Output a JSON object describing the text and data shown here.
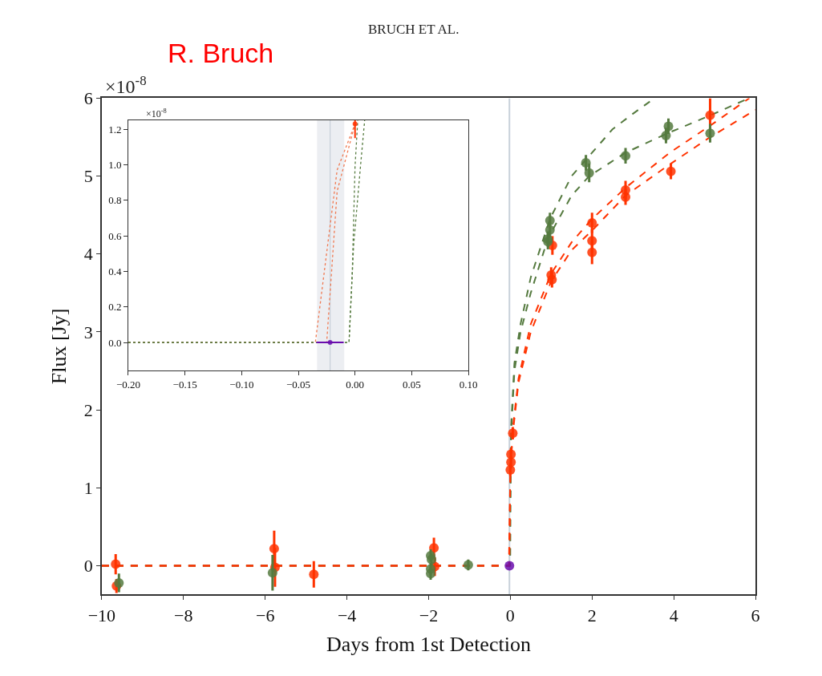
{
  "chart_data": [
    {
      "type": "scatter",
      "title": "BRUCH ET AL.",
      "xlabel": "Days from 1st Detection",
      "ylabel": "Flux [Jy]",
      "annotations": [
        "R. Bruch",
        "×10$^{-8}$"
      ],
      "xlim": [
        -10,
        6
      ],
      "ylim": [
        -0.37,
        6
      ],
      "xticks": [
        {
          "value": -10,
          "label": "−10"
        },
        {
          "value": -8,
          "label": "−8"
        },
        {
          "value": -6,
          "label": "−6"
        },
        {
          "value": -4,
          "label": "−4"
        },
        {
          "value": -2,
          "label": "−2"
        },
        0,
        2,
        4,
        6
      ],
      "yticks": [
        0,
        1,
        2,
        3,
        4,
        5,
        6
      ],
      "marker": "circle",
      "ref_lines": [
        {
          "axis": "x",
          "value": -0.022,
          "color": "#c8d0da"
        }
      ],
      "series": [
        {
          "type": "line",
          "color": "#557a3f",
          "line_style": "dashed",
          "marker": "none",
          "x": [
            -10,
            -0.005,
            0,
            0.02,
            0.1,
            0.25,
            0.5,
            0.97,
            1.5,
            2.0,
            2.5,
            3.0,
            3.53
          ],
          "values": [
            0,
            0,
            0.8,
            1.8,
            2.6,
            3.1,
            3.7,
            4.45,
            5.0,
            5.3,
            5.6,
            5.8,
            6.0
          ]
        },
        {
          "type": "line",
          "color": "#557a3f",
          "line_style": "dashed",
          "marker": "none",
          "x": [
            -10,
            -0.005,
            0,
            0.02,
            0.1,
            0.25,
            0.5,
            0.92,
            1.5,
            1.93,
            2.82,
            3.85,
            4.9,
            5.84
          ],
          "values": [
            0,
            0,
            0.7,
            1.7,
            2.5,
            3.0,
            3.5,
            4.2,
            4.75,
            5.0,
            5.3,
            5.55,
            5.78,
            6.0
          ]
        },
        {
          "type": "line",
          "color": "#ff3300",
          "line_style": "dashed",
          "marker": "none",
          "x": [
            -10,
            -0.035,
            0,
            0.06,
            0.2,
            0.5,
            1.0,
            1.5,
            2.0,
            2.82,
            3.9,
            4.9,
            5.85
          ],
          "values": [
            0,
            0,
            1.2,
            1.76,
            2.4,
            3.1,
            3.75,
            4.15,
            4.45,
            4.85,
            5.3,
            5.65,
            6.0
          ]
        },
        {
          "type": "line",
          "color": "#ff3300",
          "line_style": "dashed",
          "marker": "none",
          "x": [
            -10,
            -0.025,
            0,
            0.06,
            0.2,
            0.5,
            1.0,
            1.5,
            2.0,
            2.82,
            3.9,
            4.89,
            6
          ],
          "values": [
            0,
            0,
            1.2,
            1.7,
            2.35,
            3.0,
            3.65,
            4.05,
            4.3,
            4.75,
            5.15,
            5.5,
            5.85
          ]
        },
        {
          "color": "#ff3300",
          "x": [
            -9.66,
            -9.64,
            -5.78,
            -5.76,
            -4.81,
            -1.87,
            -1.85,
            0.0,
            0.016,
            0.016,
            0.06,
            1.03,
            1.0,
            1.02,
            2.0,
            2.0,
            2.0,
            2.82,
            2.82,
            3.93,
            4.89
          ],
          "values": [
            0.02,
            -0.26,
            0.22,
            -0.02,
            -0.11,
            0.23,
            -0.01,
            1.23,
            1.33,
            1.43,
            1.7,
            4.11,
            3.73,
            3.67,
            4.4,
            4.17,
            4.02,
            4.82,
            4.73,
            5.06,
            5.78
          ],
          "errors": [
            0.13,
            0.09,
            0.23,
            0.25,
            0.17,
            0.13,
            0.12,
            0.08,
            0.08,
            0.08,
            0.08,
            0.12,
            0.1,
            0.1,
            0.13,
            0.15,
            0.15,
            0.12,
            0.1,
            0.1,
            0.22
          ]
        },
        {
          "color": "#557a3f",
          "x": [
            -9.58,
            -5.82,
            -1.95,
            -1.93,
            -1.95,
            -1.95,
            -1.03,
            0.97,
            0.97,
            0.92,
            0.92,
            1.85,
            1.93,
            2.82,
            3.81,
            3.87,
            4.89
          ],
          "values": [
            -0.22,
            -0.09,
            0.13,
            0.08,
            -0.04,
            -0.1,
            0.01,
            4.43,
            4.31,
            4.19,
            4.16,
            5.17,
            5.04,
            5.26,
            5.52,
            5.64,
            5.55
          ],
          "errors": [
            0.12,
            0.23,
            0.08,
            0.08,
            0.08,
            0.08,
            0.07,
            0.1,
            0.1,
            0.1,
            0.1,
            0.1,
            0.12,
            0.1,
            0.1,
            0.1,
            0.12
          ]
        },
        {
          "color": "#6a0dad",
          "x": [
            -0.022
          ],
          "values": [
            0
          ]
        }
      ]
    },
    {
      "type": "scatter",
      "annotations": [
        "×10$^{-8}$"
      ],
      "xlim": [
        -0.2,
        0.1
      ],
      "ylim": [
        -0.16,
        1.25
      ],
      "xticks": [
        {
          "value": -0.2,
          "label": "−0.20"
        },
        {
          "value": -0.15,
          "label": "−0.15"
        },
        {
          "value": -0.1,
          "label": "−0.10"
        },
        {
          "value": -0.05,
          "label": "−0.05"
        },
        {
          "value": 0,
          "label": "0.00"
        },
        {
          "value": 0.05,
          "label": "0.05"
        },
        {
          "value": 0.1,
          "label": "0.10"
        }
      ],
      "yticks": [
        {
          "value": 0,
          "label": "0.0"
        },
        {
          "value": 0.2,
          "label": "0.2"
        },
        {
          "value": 0.4,
          "label": "0.4"
        },
        {
          "value": 0.6,
          "label": "0.6"
        },
        {
          "value": 0.8,
          "label": "0.8"
        },
        {
          "value": 1.0,
          "label": "1.0"
        },
        {
          "value": 1.2,
          "label": "1.2"
        }
      ],
      "marker": "circle",
      "bands": [
        {
          "axis": "x",
          "from": -0.0335,
          "to": -0.0095,
          "color": "#eceef2"
        }
      ],
      "ref_lines": [
        {
          "axis": "x",
          "value": -0.022,
          "color": "#c8d0da"
        }
      ],
      "series": [
        {
          "type": "line",
          "color": "#f07850",
          "line_style": "dotted",
          "marker": "none",
          "x": [
            -0.2,
            -0.035,
            -0.0158,
            0
          ],
          "values": [
            0,
            0,
            0.97,
            1.23
          ]
        },
        {
          "type": "line",
          "color": "#f07850",
          "line_style": "dotted",
          "marker": "none",
          "x": [
            -0.2,
            -0.025,
            -0.0158,
            0
          ],
          "values": [
            0,
            0,
            0.85,
            1.23
          ]
        },
        {
          "type": "line",
          "color": "#557a3f",
          "line_style": "dotted",
          "marker": "none",
          "x": [
            -0.2,
            -0.0053,
            -0.0024,
            0,
            0.0024
          ],
          "values": [
            0,
            0,
            0.4,
            0.99,
            1.25
          ]
        },
        {
          "type": "line",
          "color": "#557a3f",
          "line_style": "dotted",
          "marker": "none",
          "x": [
            -0.2,
            -0.0053,
            -0.0012,
            0.0048,
            0.0085
          ],
          "values": [
            0,
            0,
            0.55,
            0.99,
            1.25
          ]
        },
        {
          "color": "#ff3300",
          "x": [
            0
          ],
          "values": [
            1.23
          ],
          "errors": [
            0.08
          ]
        },
        {
          "color": "#6a0dad",
          "x": [
            -0.022
          ],
          "values": [
            0
          ],
          "xerrors": [
            0.012
          ]
        }
      ]
    }
  ]
}
